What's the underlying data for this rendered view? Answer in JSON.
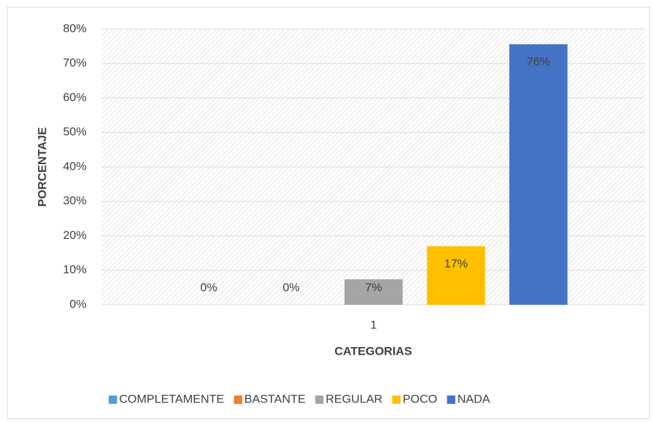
{
  "chart_data": {
    "type": "bar",
    "categories": [
      "1"
    ],
    "series": [
      {
        "name": "COMPLETAMENTE",
        "color": "#5b9bd5",
        "values": [
          0
        ],
        "value_labels": [
          "0%"
        ]
      },
      {
        "name": "BASTANTE",
        "color": "#ed7d31",
        "values": [
          0
        ],
        "value_labels": [
          "0%"
        ]
      },
      {
        "name": "REGULAR",
        "color": "#a5a5a5",
        "values": [
          7.4
        ],
        "value_labels": [
          "7%"
        ]
      },
      {
        "name": "POCO",
        "color": "#ffc000",
        "values": [
          17
        ],
        "value_labels": [
          "17%"
        ]
      },
      {
        "name": "NADA",
        "color": "#4472c4",
        "values": [
          75.6
        ],
        "value_labels": [
          "76%"
        ]
      }
    ],
    "x_label": "CATEGORIAS",
    "y_label": "PORCENTAJE",
    "ylim": [
      0,
      80
    ],
    "yticks": [
      {
        "value": 0,
        "label": "0%"
      },
      {
        "value": 10,
        "label": "10%"
      },
      {
        "value": 20,
        "label": "20%"
      },
      {
        "value": 30,
        "label": "30%"
      },
      {
        "value": 40,
        "label": "40%"
      },
      {
        "value": 50,
        "label": "50%"
      },
      {
        "value": 60,
        "label": "60%"
      },
      {
        "value": 70,
        "label": "70%"
      },
      {
        "value": 80,
        "label": "80%"
      }
    ],
    "grid": true,
    "legend": "bottom"
  }
}
